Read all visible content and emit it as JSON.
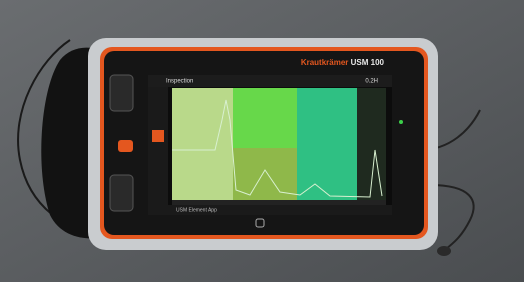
{
  "device": {
    "brand": "Krautkrämer",
    "model": "USM 100"
  },
  "screen": {
    "title": "Inspection",
    "gain": "0.2H",
    "footer": "USM Element App"
  }
}
